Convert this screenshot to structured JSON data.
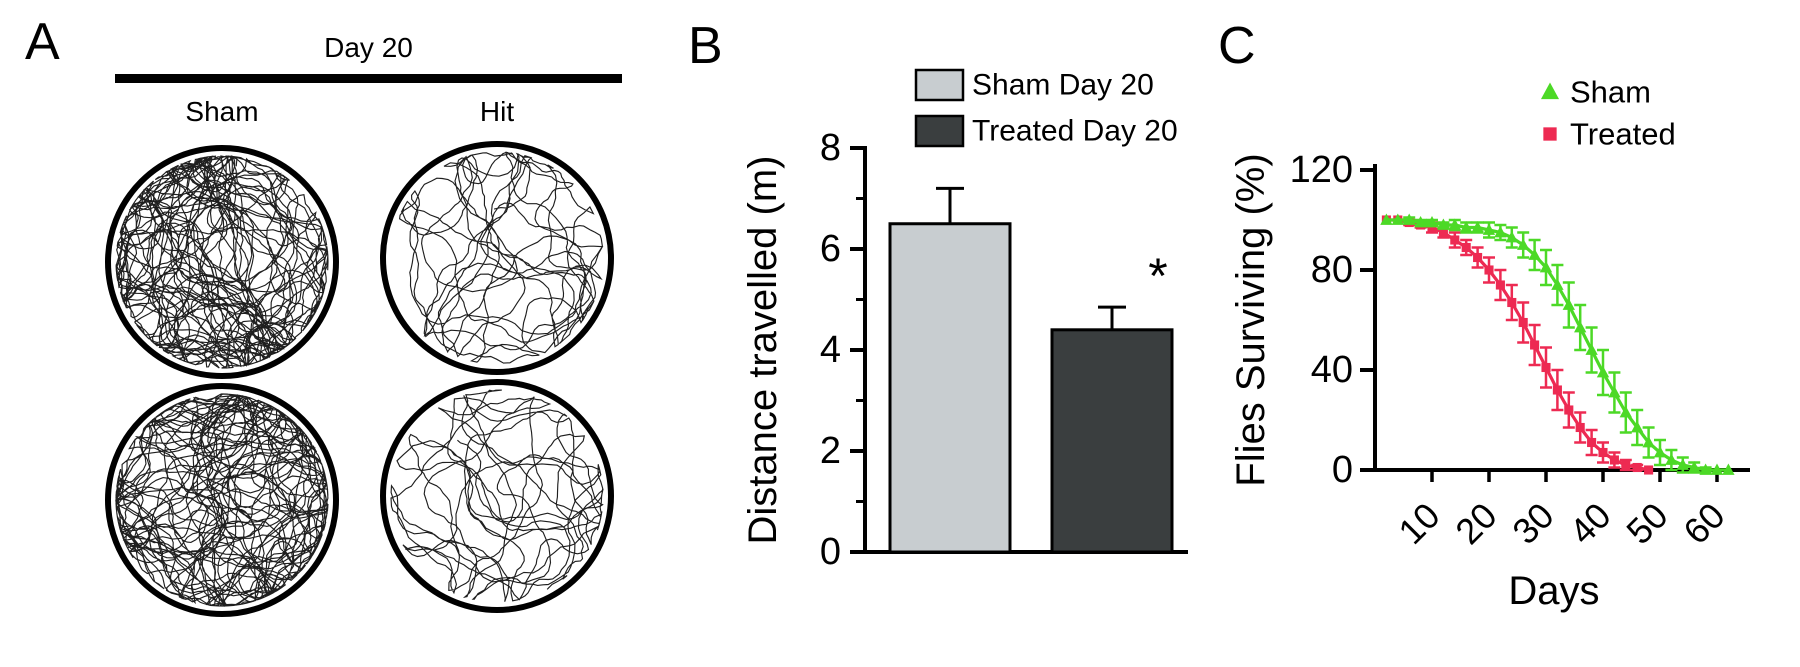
{
  "figure": {
    "panels": {
      "A": {
        "label": "A",
        "header": "Day 20",
        "columns": [
          "Sham",
          "Hit"
        ],
        "arenas": [
          {
            "group": "Sham",
            "row": 1,
            "trace_density": "high"
          },
          {
            "group": "Hit",
            "row": 1,
            "trace_density": "low"
          },
          {
            "group": "Sham",
            "row": 2,
            "trace_density": "high"
          },
          {
            "group": "Hit",
            "row": 2,
            "trace_density": "low"
          }
        ]
      },
      "B": {
        "label": "B"
      },
      "C": {
        "label": "C"
      }
    }
  },
  "chart_data": [
    {
      "id": "distance",
      "panel": "B",
      "type": "bar",
      "categories": [
        "Sham Day 20",
        "Treated Day 20"
      ],
      "values": [
        6.5,
        4.4
      ],
      "errors_upper": [
        0.7,
        0.45
      ],
      "bar_colors": [
        "#c8cdd0",
        "#3a3e3f"
      ],
      "xlabel": "",
      "ylabel": "Distance travelled (m)",
      "ylim": [
        0,
        8
      ],
      "yticks": [
        0,
        2,
        4,
        6,
        8
      ],
      "minor_yticks": [
        1,
        3,
        5,
        7
      ],
      "legend": [
        {
          "label": "Sham Day 20",
          "color": "#c8cdd0"
        },
        {
          "label": "Treated Day 20",
          "color": "#3a3e3f"
        }
      ],
      "annotations": [
        {
          "type": "significance",
          "text": "*",
          "category": "Treated Day 20"
        }
      ]
    },
    {
      "id": "survival",
      "panel": "C",
      "type": "line",
      "xlabel": "Days",
      "ylabel": "Flies Surviving (%)",
      "xlim": [
        0,
        64
      ],
      "ylim": [
        0,
        120
      ],
      "yticks": [
        0,
        40,
        80,
        120
      ],
      "xticks": [
        10,
        20,
        30,
        40,
        50,
        60
      ],
      "legend_position": "top-right",
      "series": [
        {
          "name": "Sham",
          "color": "#4cd926",
          "marker": "triangle",
          "x": [
            2,
            4,
            6,
            8,
            10,
            12,
            14,
            16,
            18,
            20,
            22,
            24,
            26,
            28,
            30,
            32,
            34,
            36,
            38,
            40,
            42,
            44,
            46,
            48,
            50,
            52,
            54,
            56,
            58,
            60,
            62
          ],
          "y": [
            100,
            100,
            100,
            99,
            99,
            98,
            98,
            97,
            97,
            96,
            95,
            93,
            90,
            86,
            81,
            74,
            66,
            57,
            48,
            39,
            31,
            23,
            17,
            11,
            7,
            4,
            2,
            1,
            0,
            0,
            0
          ],
          "err": [
            0,
            0,
            1,
            1,
            1,
            1,
            2,
            2,
            2,
            3,
            3,
            4,
            5,
            6,
            7,
            8,
            9,
            9,
            9,
            9,
            8,
            8,
            7,
            6,
            5,
            4,
            3,
            2,
            1,
            0,
            0
          ]
        },
        {
          "name": "Treated",
          "color": "#ed2a52",
          "marker": "square",
          "x": [
            2,
            4,
            6,
            8,
            10,
            12,
            14,
            16,
            18,
            20,
            22,
            24,
            26,
            28,
            30,
            32,
            34,
            36,
            38,
            40,
            42,
            44,
            46,
            48
          ],
          "y": [
            100,
            100,
            99,
            98,
            97,
            95,
            92,
            89,
            85,
            80,
            74,
            67,
            59,
            50,
            41,
            32,
            24,
            17,
            11,
            7,
            4,
            2,
            1,
            0
          ],
          "err": [
            0,
            0,
            1,
            1,
            2,
            2,
            3,
            3,
            4,
            5,
            6,
            7,
            8,
            8,
            8,
            8,
            7,
            6,
            5,
            4,
            3,
            2,
            1,
            0
          ]
        }
      ]
    }
  ]
}
